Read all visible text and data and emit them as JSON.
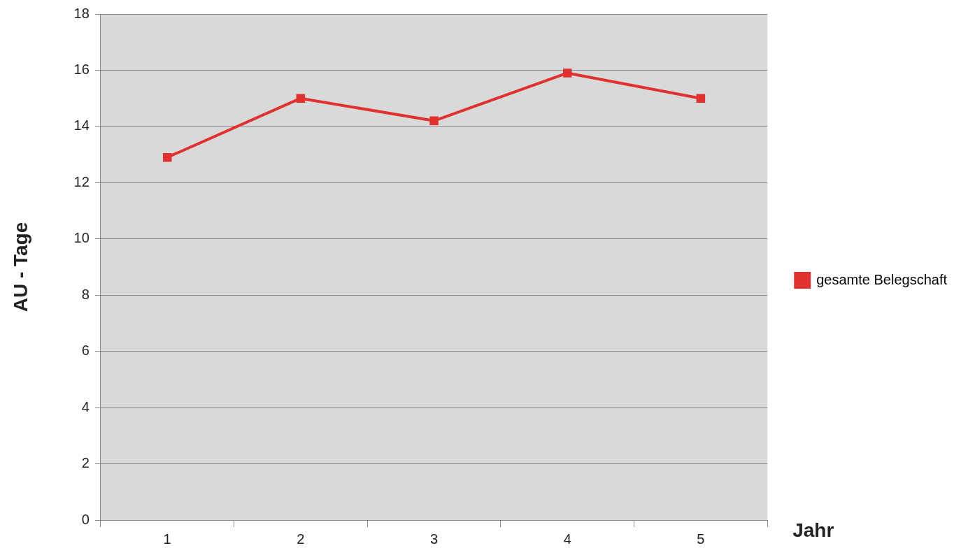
{
  "chart_data": {
    "type": "line",
    "xlabel": "Jahr",
    "ylabel": "AU - Tage",
    "categories": [
      "1",
      "2",
      "3",
      "4",
      "5"
    ],
    "series": [
      {
        "name": "gesamte Belegschaft",
        "color": "#e03131",
        "values": [
          12.9,
          15,
          14.2,
          15.9,
          15
        ]
      }
    ],
    "ylim": [
      0,
      18
    ],
    "yticks": [
      0,
      2,
      4,
      6,
      8,
      10,
      12,
      14,
      16,
      18
    ],
    "grid": "y",
    "legend": "right",
    "marker": "square",
    "line_style": "solid"
  }
}
